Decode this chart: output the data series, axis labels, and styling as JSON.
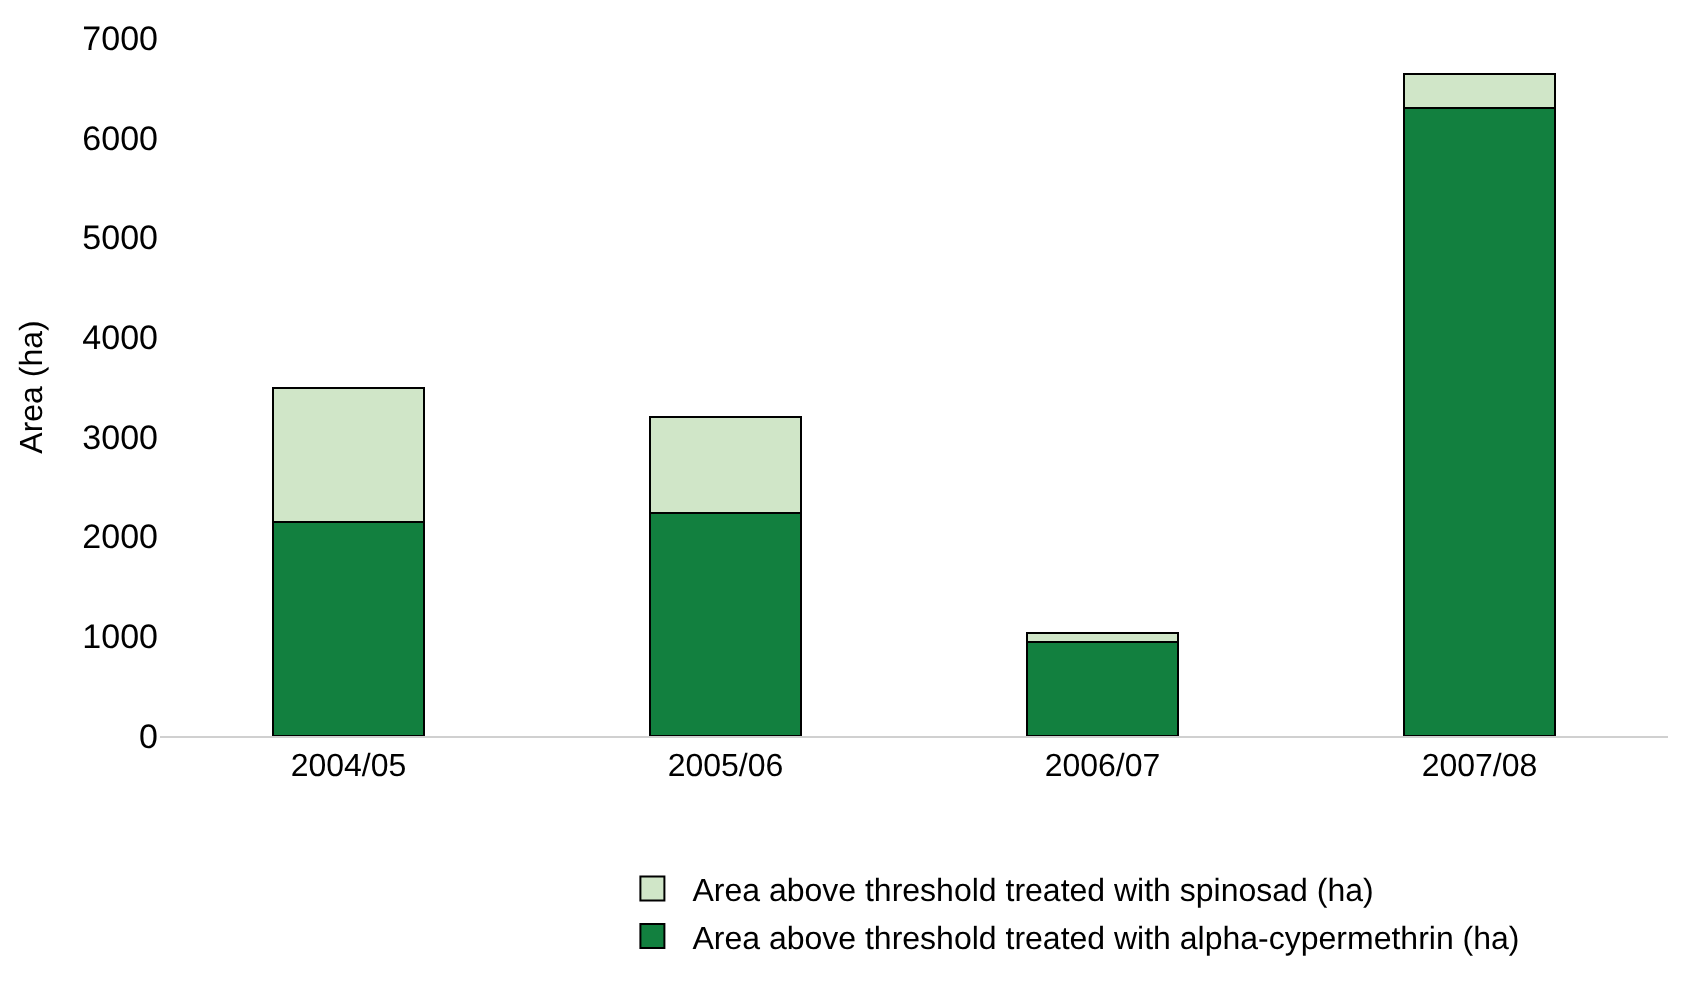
{
  "chart_data": {
    "type": "bar",
    "stacked": true,
    "ylabel": "Area (ha)",
    "categories": [
      "2004/05",
      "2005/06",
      "2006/07",
      "2007/08"
    ],
    "series": [
      {
        "name": "Area above threshold treated with alpha-cypermethrin (ha)",
        "color": "#12803f",
        "values": [
          2150,
          2240,
          940,
          6300
        ]
      },
      {
        "name": "Area above threshold treated with spinosad (ha)",
        "color": "#d0e6c8",
        "values": [
          1340,
          960,
          90,
          340
        ]
      }
    ],
    "ylim": [
      0,
      7000
    ],
    "yticks": [
      0,
      1000,
      2000,
      3000,
      4000,
      5000,
      6000,
      7000
    ],
    "legend": "bottom"
  }
}
